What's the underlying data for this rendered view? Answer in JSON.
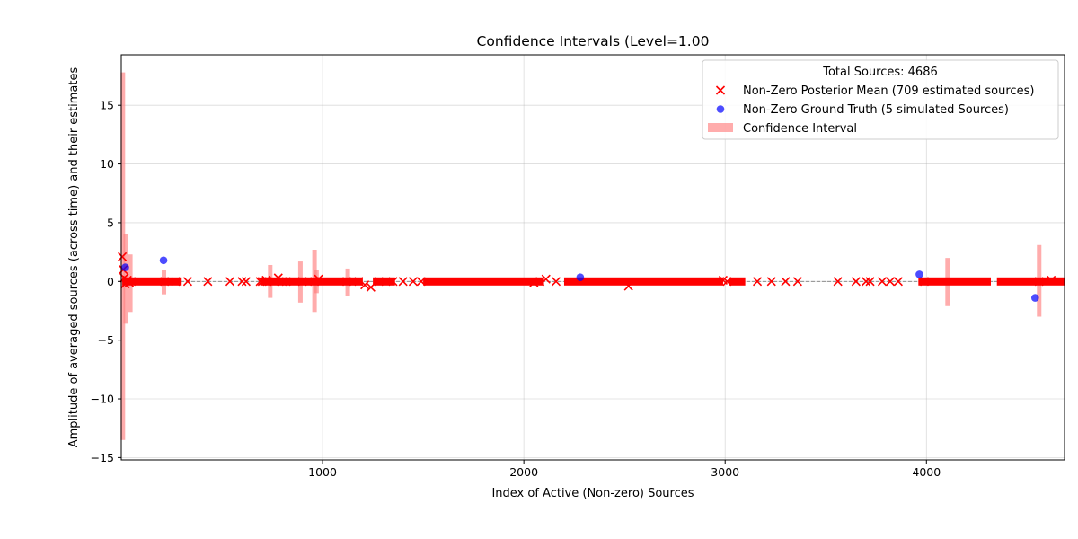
{
  "chart_data": {
    "type": "scatter",
    "title": "Confidence Intervals (Level=1.00",
    "xlabel": "Index of Active (Non-zero) Sources",
    "ylabel": "Amplitude of averaged sources (across time) and their estimates",
    "xlim": [
      0,
      4686
    ],
    "ylim": [
      -15.2,
      19.3
    ],
    "x_ticks": [
      1000,
      2000,
      3000,
      4000
    ],
    "y_ticks": [
      -15,
      -10,
      -5,
      0,
      5,
      10,
      15
    ],
    "grid": true,
    "zero_line": true,
    "legend": {
      "placement": "top-right",
      "title": "Total Sources: 4686",
      "entries": [
        "Non-Zero Posterior Mean (709 estimated sources)",
        "Non-Zero Ground Truth (5 simulated Sources)",
        "Confidence Interval"
      ]
    },
    "colors": {
      "posterior_mean": "#ff0000",
      "ground_truth": "#0000ff",
      "confidence_interval": "#ff7f7f"
    },
    "ground_truth": {
      "name": "Non-Zero Ground Truth (5 simulated Sources)",
      "x": [
        20,
        210,
        2280,
        3965,
        4540
      ],
      "y": [
        1.2,
        1.8,
        0.35,
        0.6,
        -1.4
      ]
    },
    "posterior_mean": {
      "name": "Non-Zero Posterior Mean (709 estimated sources)",
      "x": [
        5,
        10,
        15,
        20,
        30,
        40,
        50,
        215,
        270,
        330,
        430,
        540,
        600,
        620,
        690,
        700,
        720,
        760,
        780,
        800,
        820,
        900,
        960,
        980,
        1120,
        1180,
        1210,
        1240,
        1280,
        1350,
        1400,
        1450,
        1490,
        2050,
        2080,
        2110,
        2160,
        2520,
        2990,
        3010,
        3160,
        3230,
        3300,
        3360,
        3560,
        3650,
        3700,
        3720,
        3780,
        3820,
        3860,
        3990,
        4560,
        4620
      ],
      "y": [
        2.1,
        1.0,
        0.3,
        -0.2,
        0.1,
        -0.1,
        0.0,
        0.0,
        0.0,
        0.0,
        0.0,
        0.0,
        0.0,
        0.0,
        0.0,
        0.0,
        0.1,
        0.0,
        0.3,
        0.0,
        0.0,
        0.0,
        0.0,
        0.2,
        0.0,
        0.0,
        -0.3,
        -0.5,
        0.0,
        0.0,
        0.0,
        0.0,
        0.0,
        -0.1,
        0.0,
        0.2,
        0.0,
        -0.4,
        0.1,
        0.0,
        0.0,
        0.0,
        0.0,
        0.0,
        0.0,
        0.0,
        0.0,
        0.0,
        0.0,
        0.0,
        0.0,
        0.0,
        0.0,
        0.1
      ]
    },
    "dense_estimate_ranges": [
      [
        5,
        300
      ],
      [
        690,
        1200
      ],
      [
        1250,
        1360
      ],
      [
        1500,
        2100
      ],
      [
        2200,
        2990
      ],
      [
        3020,
        3100
      ],
      [
        3960,
        4320
      ],
      [
        4350,
        4686
      ]
    ],
    "confidence_intervals": [
      {
        "x": 8,
        "low": -13.5,
        "high": 17.8
      },
      {
        "x": 22,
        "low": -3.6,
        "high": 4.0
      },
      {
        "x": 45,
        "low": -2.6,
        "high": 2.3
      },
      {
        "x": 212,
        "low": -1.1,
        "high": 1.0
      },
      {
        "x": 740,
        "low": -1.4,
        "high": 1.4
      },
      {
        "x": 890,
        "low": -1.8,
        "high": 1.7
      },
      {
        "x": 960,
        "low": -2.6,
        "high": 2.7
      },
      {
        "x": 970,
        "low": -1.0,
        "high": 1.0
      },
      {
        "x": 1125,
        "low": -1.2,
        "high": 1.1
      },
      {
        "x": 4105,
        "low": -2.1,
        "high": 2.0
      },
      {
        "x": 4560,
        "low": -3.0,
        "high": 3.1
      }
    ]
  }
}
